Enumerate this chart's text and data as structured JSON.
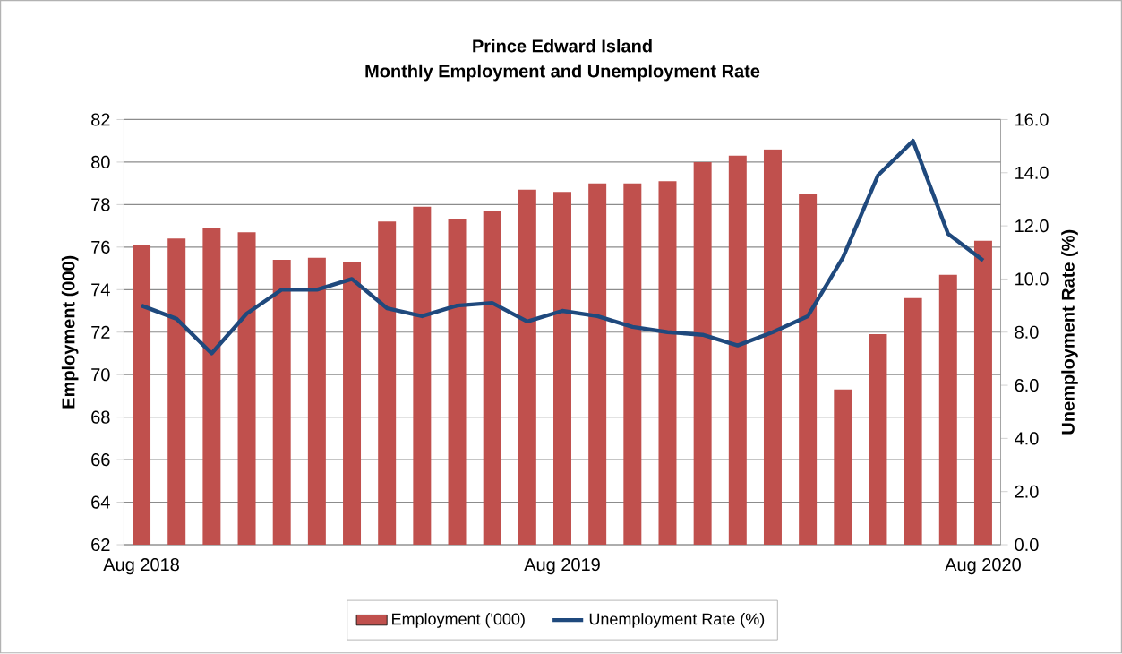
{
  "chart_data": {
    "type": "bar",
    "title": "Prince Edward Island",
    "subtitle": "Monthly Employment and Unemployment Rate",
    "ylabel": "Employment (000)",
    "y2label": "Unemployment Rate (%)",
    "categories": [
      "Aug 2018",
      null,
      null,
      null,
      null,
      null,
      null,
      null,
      null,
      null,
      null,
      null,
      "Aug 2019",
      null,
      null,
      null,
      null,
      null,
      null,
      null,
      null,
      null,
      null,
      null,
      "Aug 2020"
    ],
    "series": [
      {
        "name": "Employment ('000)",
        "color": "#c0504d",
        "values": [
          76.1,
          76.4,
          76.9,
          76.7,
          75.4,
          75.5,
          75.3,
          77.2,
          77.9,
          77.3,
          77.7,
          78.7,
          78.6,
          79.0,
          79.0,
          79.1,
          80.0,
          80.3,
          80.6,
          78.5,
          69.3,
          71.9,
          73.6,
          74.7,
          76.3
        ]
      },
      {
        "name": "Unemployment Rate (%)",
        "type": "line",
        "axis": "y2",
        "color": "#1f497d",
        "values": [
          9.0,
          8.5,
          7.2,
          8.7,
          9.6,
          9.6,
          10.0,
          8.9,
          8.6,
          9.0,
          9.1,
          8.4,
          8.8,
          8.6,
          8.2,
          8.0,
          7.9,
          7.5,
          8.0,
          8.6,
          10.8,
          13.9,
          15.2,
          11.7,
          10.7
        ]
      }
    ],
    "ylim": [
      62,
      82
    ],
    "yticks": [
      62,
      64,
      66,
      68,
      70,
      72,
      74,
      76,
      78,
      80,
      82
    ],
    "y2lim": [
      0,
      16
    ],
    "y2ticks": [
      {
        "value": 0,
        "label": "0.0"
      },
      {
        "value": 2,
        "label": "2.0"
      },
      {
        "value": 4,
        "label": "4.0"
      },
      {
        "value": 6,
        "label": "6.0"
      },
      {
        "value": 8,
        "label": "8.0"
      },
      {
        "value": 10,
        "label": "10.0"
      },
      {
        "value": 12,
        "label": "12.0"
      },
      {
        "value": 14,
        "label": "14.0"
      },
      {
        "value": 16,
        "label": "16.0"
      }
    ],
    "grid": "y",
    "legend": "bottom"
  }
}
